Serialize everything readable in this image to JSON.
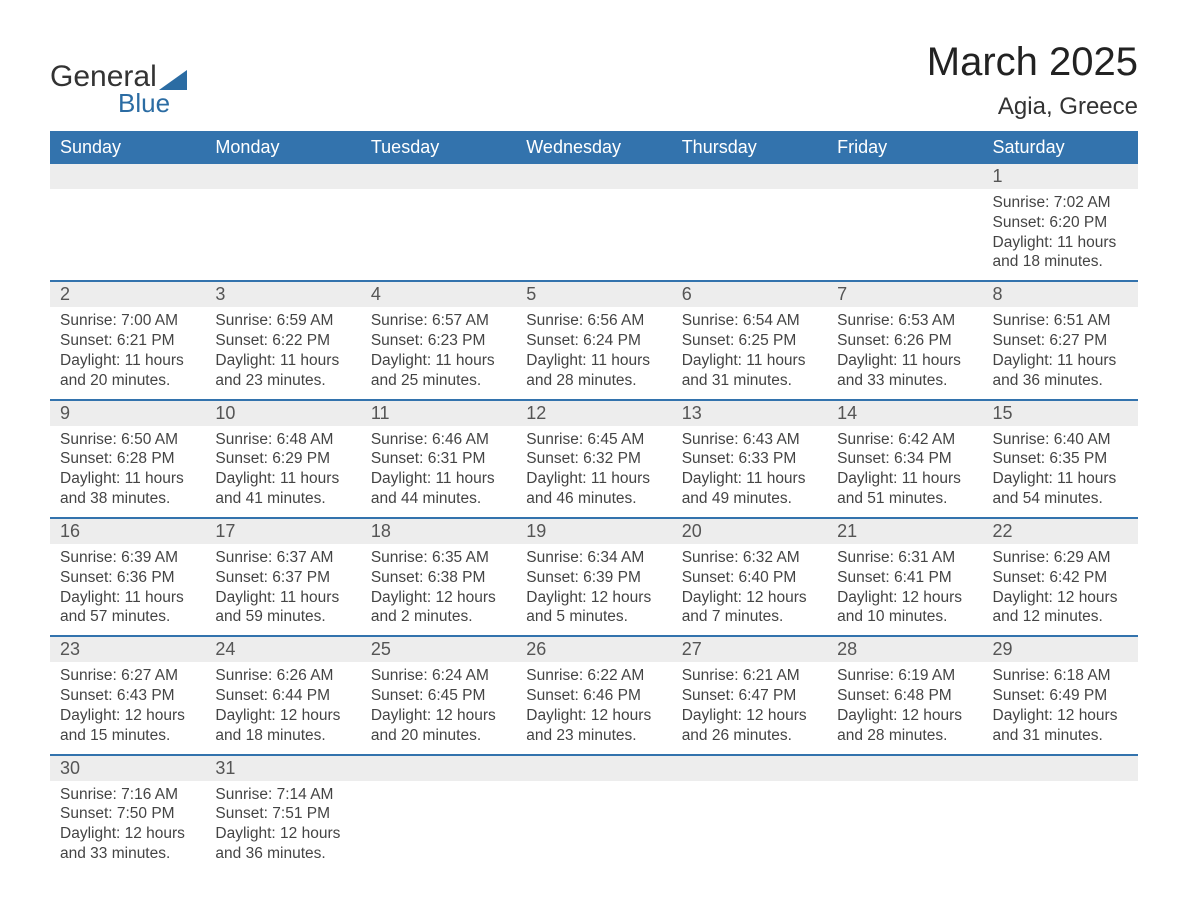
{
  "logo": {
    "line1": "General",
    "line2": "Blue"
  },
  "title": "March 2025",
  "location": "Agia, Greece",
  "colors": {
    "header_bg": "#3373ad",
    "header_text": "#ffffff",
    "daynum_bg": "#ededed",
    "row_divider": "#3373ad",
    "body_text": "#444444",
    "title_text": "#222222",
    "logo_accent": "#2b6ca3"
  },
  "typography": {
    "title_fontsize": 40,
    "location_fontsize": 24,
    "header_fontsize": 18,
    "body_fontsize": 15.5
  },
  "weekdays": [
    "Sunday",
    "Monday",
    "Tuesday",
    "Wednesday",
    "Thursday",
    "Friday",
    "Saturday"
  ],
  "weeks": [
    [
      null,
      null,
      null,
      null,
      null,
      null,
      {
        "n": "1",
        "sunrise": "Sunrise: 7:02 AM",
        "sunset": "Sunset: 6:20 PM",
        "day1": "Daylight: 11 hours",
        "day2": "and 18 minutes."
      }
    ],
    [
      {
        "n": "2",
        "sunrise": "Sunrise: 7:00 AM",
        "sunset": "Sunset: 6:21 PM",
        "day1": "Daylight: 11 hours",
        "day2": "and 20 minutes."
      },
      {
        "n": "3",
        "sunrise": "Sunrise: 6:59 AM",
        "sunset": "Sunset: 6:22 PM",
        "day1": "Daylight: 11 hours",
        "day2": "and 23 minutes."
      },
      {
        "n": "4",
        "sunrise": "Sunrise: 6:57 AM",
        "sunset": "Sunset: 6:23 PM",
        "day1": "Daylight: 11 hours",
        "day2": "and 25 minutes."
      },
      {
        "n": "5",
        "sunrise": "Sunrise: 6:56 AM",
        "sunset": "Sunset: 6:24 PM",
        "day1": "Daylight: 11 hours",
        "day2": "and 28 minutes."
      },
      {
        "n": "6",
        "sunrise": "Sunrise: 6:54 AM",
        "sunset": "Sunset: 6:25 PM",
        "day1": "Daylight: 11 hours",
        "day2": "and 31 minutes."
      },
      {
        "n": "7",
        "sunrise": "Sunrise: 6:53 AM",
        "sunset": "Sunset: 6:26 PM",
        "day1": "Daylight: 11 hours",
        "day2": "and 33 minutes."
      },
      {
        "n": "8",
        "sunrise": "Sunrise: 6:51 AM",
        "sunset": "Sunset: 6:27 PM",
        "day1": "Daylight: 11 hours",
        "day2": "and 36 minutes."
      }
    ],
    [
      {
        "n": "9",
        "sunrise": "Sunrise: 6:50 AM",
        "sunset": "Sunset: 6:28 PM",
        "day1": "Daylight: 11 hours",
        "day2": "and 38 minutes."
      },
      {
        "n": "10",
        "sunrise": "Sunrise: 6:48 AM",
        "sunset": "Sunset: 6:29 PM",
        "day1": "Daylight: 11 hours",
        "day2": "and 41 minutes."
      },
      {
        "n": "11",
        "sunrise": "Sunrise: 6:46 AM",
        "sunset": "Sunset: 6:31 PM",
        "day1": "Daylight: 11 hours",
        "day2": "and 44 minutes."
      },
      {
        "n": "12",
        "sunrise": "Sunrise: 6:45 AM",
        "sunset": "Sunset: 6:32 PM",
        "day1": "Daylight: 11 hours",
        "day2": "and 46 minutes."
      },
      {
        "n": "13",
        "sunrise": "Sunrise: 6:43 AM",
        "sunset": "Sunset: 6:33 PM",
        "day1": "Daylight: 11 hours",
        "day2": "and 49 minutes."
      },
      {
        "n": "14",
        "sunrise": "Sunrise: 6:42 AM",
        "sunset": "Sunset: 6:34 PM",
        "day1": "Daylight: 11 hours",
        "day2": "and 51 minutes."
      },
      {
        "n": "15",
        "sunrise": "Sunrise: 6:40 AM",
        "sunset": "Sunset: 6:35 PM",
        "day1": "Daylight: 11 hours",
        "day2": "and 54 minutes."
      }
    ],
    [
      {
        "n": "16",
        "sunrise": "Sunrise: 6:39 AM",
        "sunset": "Sunset: 6:36 PM",
        "day1": "Daylight: 11 hours",
        "day2": "and 57 minutes."
      },
      {
        "n": "17",
        "sunrise": "Sunrise: 6:37 AM",
        "sunset": "Sunset: 6:37 PM",
        "day1": "Daylight: 11 hours",
        "day2": "and 59 minutes."
      },
      {
        "n": "18",
        "sunrise": "Sunrise: 6:35 AM",
        "sunset": "Sunset: 6:38 PM",
        "day1": "Daylight: 12 hours",
        "day2": "and 2 minutes."
      },
      {
        "n": "19",
        "sunrise": "Sunrise: 6:34 AM",
        "sunset": "Sunset: 6:39 PM",
        "day1": "Daylight: 12 hours",
        "day2": "and 5 minutes."
      },
      {
        "n": "20",
        "sunrise": "Sunrise: 6:32 AM",
        "sunset": "Sunset: 6:40 PM",
        "day1": "Daylight: 12 hours",
        "day2": "and 7 minutes."
      },
      {
        "n": "21",
        "sunrise": "Sunrise: 6:31 AM",
        "sunset": "Sunset: 6:41 PM",
        "day1": "Daylight: 12 hours",
        "day2": "and 10 minutes."
      },
      {
        "n": "22",
        "sunrise": "Sunrise: 6:29 AM",
        "sunset": "Sunset: 6:42 PM",
        "day1": "Daylight: 12 hours",
        "day2": "and 12 minutes."
      }
    ],
    [
      {
        "n": "23",
        "sunrise": "Sunrise: 6:27 AM",
        "sunset": "Sunset: 6:43 PM",
        "day1": "Daylight: 12 hours",
        "day2": "and 15 minutes."
      },
      {
        "n": "24",
        "sunrise": "Sunrise: 6:26 AM",
        "sunset": "Sunset: 6:44 PM",
        "day1": "Daylight: 12 hours",
        "day2": "and 18 minutes."
      },
      {
        "n": "25",
        "sunrise": "Sunrise: 6:24 AM",
        "sunset": "Sunset: 6:45 PM",
        "day1": "Daylight: 12 hours",
        "day2": "and 20 minutes."
      },
      {
        "n": "26",
        "sunrise": "Sunrise: 6:22 AM",
        "sunset": "Sunset: 6:46 PM",
        "day1": "Daylight: 12 hours",
        "day2": "and 23 minutes."
      },
      {
        "n": "27",
        "sunrise": "Sunrise: 6:21 AM",
        "sunset": "Sunset: 6:47 PM",
        "day1": "Daylight: 12 hours",
        "day2": "and 26 minutes."
      },
      {
        "n": "28",
        "sunrise": "Sunrise: 6:19 AM",
        "sunset": "Sunset: 6:48 PM",
        "day1": "Daylight: 12 hours",
        "day2": "and 28 minutes."
      },
      {
        "n": "29",
        "sunrise": "Sunrise: 6:18 AM",
        "sunset": "Sunset: 6:49 PM",
        "day1": "Daylight: 12 hours",
        "day2": "and 31 minutes."
      }
    ],
    [
      {
        "n": "30",
        "sunrise": "Sunrise: 7:16 AM",
        "sunset": "Sunset: 7:50 PM",
        "day1": "Daylight: 12 hours",
        "day2": "and 33 minutes."
      },
      {
        "n": "31",
        "sunrise": "Sunrise: 7:14 AM",
        "sunset": "Sunset: 7:51 PM",
        "day1": "Daylight: 12 hours",
        "day2": "and 36 minutes."
      },
      null,
      null,
      null,
      null,
      null
    ]
  ]
}
